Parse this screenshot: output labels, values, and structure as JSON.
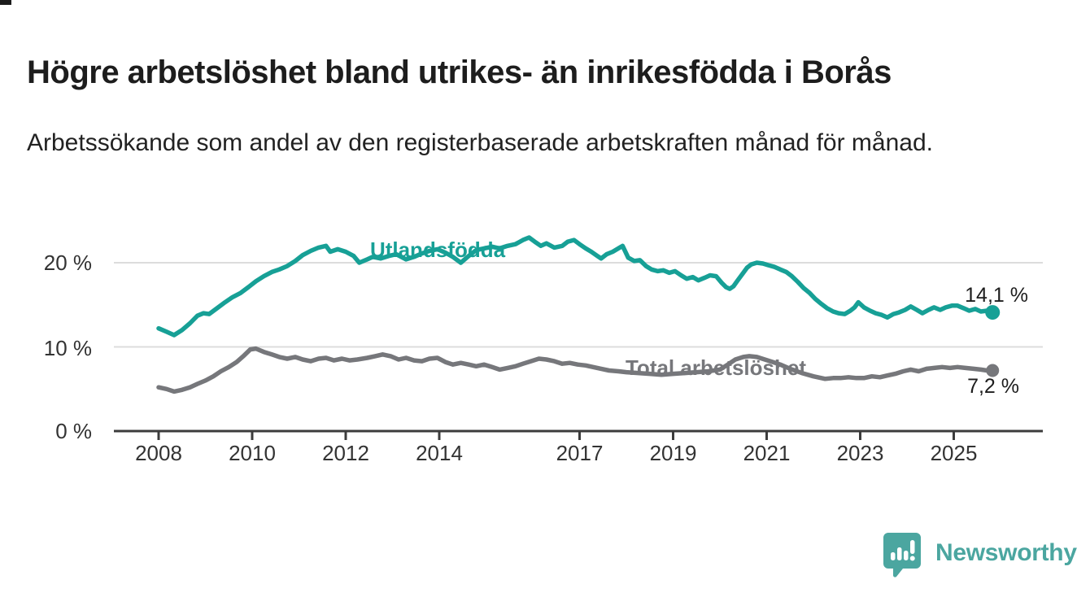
{
  "header": {
    "title": "Högre arbetslöshet bland utrikes- än inrikesfödda i Borås",
    "subtitle": "Arbetssökande som andel av den registerbaserade arbetskraften månad för månad."
  },
  "colors": {
    "accent_teal": "#17a096",
    "line_gray": "#76777b",
    "grid": "#dcdcdc",
    "axis": "#3c3c3c",
    "text_dark": "#1d1d1d",
    "logo_teal": "#4ba6a0"
  },
  "chart_data": {
    "type": "line",
    "title": "Högre arbetslöshet bland utrikes- än inrikesfödda i Borås",
    "subtitle": "Arbetssökande som andel av den registerbaserade arbetskraften månad för månad.",
    "xlabel": "",
    "ylabel": "",
    "grid": "horizontal",
    "legend_position": "inline-labels",
    "x_range": [
      2008,
      2025.83
    ],
    "ylim": [
      0,
      24
    ],
    "x_ticks": [
      2008,
      2010,
      2012,
      2014,
      2017,
      2019,
      2021,
      2023,
      2025
    ],
    "y_ticks": [
      {
        "value": 0,
        "label": "0 %"
      },
      {
        "value": 10,
        "label": "10 %"
      },
      {
        "value": 20,
        "label": "20 %"
      }
    ],
    "series": [
      {
        "name": "Utlandsfödda",
        "color": "#17a096",
        "end_label": "14,1 %",
        "end_value": 14.1,
        "points": [
          [
            2008.0,
            12.2
          ],
          [
            2008.17,
            11.8
          ],
          [
            2008.33,
            11.4
          ],
          [
            2008.5,
            12.0
          ],
          [
            2008.67,
            12.8
          ],
          [
            2008.83,
            13.7
          ],
          [
            2008.96,
            14.0
          ],
          [
            2009.08,
            13.9
          ],
          [
            2009.25,
            14.6
          ],
          [
            2009.42,
            15.3
          ],
          [
            2009.58,
            15.9
          ],
          [
            2009.75,
            16.4
          ],
          [
            2009.92,
            17.1
          ],
          [
            2010.08,
            17.8
          ],
          [
            2010.25,
            18.4
          ],
          [
            2010.42,
            18.9
          ],
          [
            2010.58,
            19.2
          ],
          [
            2010.75,
            19.6
          ],
          [
            2010.92,
            20.2
          ],
          [
            2011.08,
            20.9
          ],
          [
            2011.25,
            21.4
          ],
          [
            2011.42,
            21.8
          ],
          [
            2011.58,
            22.0
          ],
          [
            2011.67,
            21.3
          ],
          [
            2011.83,
            21.6
          ],
          [
            2012.0,
            21.3
          ],
          [
            2012.17,
            20.8
          ],
          [
            2012.29,
            20.0
          ],
          [
            2012.46,
            20.4
          ],
          [
            2012.58,
            20.7
          ],
          [
            2012.75,
            20.5
          ],
          [
            2012.92,
            20.8
          ],
          [
            2013.08,
            21.0
          ],
          [
            2013.29,
            20.4
          ],
          [
            2013.46,
            20.7
          ],
          [
            2013.63,
            21.1
          ],
          [
            2013.79,
            21.4
          ],
          [
            2013.96,
            21.6
          ],
          [
            2014.13,
            21.2
          ],
          [
            2014.29,
            20.7
          ],
          [
            2014.46,
            20.0
          ],
          [
            2014.63,
            20.8
          ],
          [
            2014.79,
            21.5
          ],
          [
            2014.96,
            21.7
          ],
          [
            2015.13,
            21.9
          ],
          [
            2015.29,
            21.7
          ],
          [
            2015.46,
            22.0
          ],
          [
            2015.63,
            22.2
          ],
          [
            2015.79,
            22.7
          ],
          [
            2015.92,
            23.0
          ],
          [
            2016.04,
            22.5
          ],
          [
            2016.17,
            22.0
          ],
          [
            2016.29,
            22.3
          ],
          [
            2016.46,
            21.8
          ],
          [
            2016.63,
            22.0
          ],
          [
            2016.75,
            22.5
          ],
          [
            2016.88,
            22.7
          ],
          [
            2017.0,
            22.2
          ],
          [
            2017.13,
            21.7
          ],
          [
            2017.25,
            21.3
          ],
          [
            2017.38,
            20.8
          ],
          [
            2017.46,
            20.5
          ],
          [
            2017.58,
            21.0
          ],
          [
            2017.71,
            21.3
          ],
          [
            2017.83,
            21.7
          ],
          [
            2017.92,
            22.0
          ],
          [
            2018.04,
            20.6
          ],
          [
            2018.17,
            20.2
          ],
          [
            2018.29,
            20.3
          ],
          [
            2018.42,
            19.6
          ],
          [
            2018.54,
            19.2
          ],
          [
            2018.67,
            19.0
          ],
          [
            2018.79,
            19.1
          ],
          [
            2018.92,
            18.8
          ],
          [
            2019.04,
            19.0
          ],
          [
            2019.17,
            18.5
          ],
          [
            2019.29,
            18.1
          ],
          [
            2019.42,
            18.3
          ],
          [
            2019.54,
            17.9
          ],
          [
            2019.67,
            18.2
          ],
          [
            2019.79,
            18.5
          ],
          [
            2019.92,
            18.4
          ],
          [
            2020.04,
            17.6
          ],
          [
            2020.13,
            17.1
          ],
          [
            2020.21,
            16.9
          ],
          [
            2020.29,
            17.2
          ],
          [
            2020.38,
            17.9
          ],
          [
            2020.5,
            18.8
          ],
          [
            2020.58,
            19.4
          ],
          [
            2020.67,
            19.8
          ],
          [
            2020.79,
            20.0
          ],
          [
            2020.92,
            19.9
          ],
          [
            2021.04,
            19.7
          ],
          [
            2021.17,
            19.5
          ],
          [
            2021.29,
            19.2
          ],
          [
            2021.42,
            18.9
          ],
          [
            2021.54,
            18.4
          ],
          [
            2021.67,
            17.7
          ],
          [
            2021.79,
            17.0
          ],
          [
            2021.92,
            16.4
          ],
          [
            2022.04,
            15.7
          ],
          [
            2022.17,
            15.1
          ],
          [
            2022.29,
            14.6
          ],
          [
            2022.42,
            14.2
          ],
          [
            2022.54,
            14.0
          ],
          [
            2022.67,
            13.9
          ],
          [
            2022.79,
            14.3
          ],
          [
            2022.88,
            14.7
          ],
          [
            2022.96,
            15.3
          ],
          [
            2023.08,
            14.7
          ],
          [
            2023.21,
            14.3
          ],
          [
            2023.33,
            14.0
          ],
          [
            2023.46,
            13.8
          ],
          [
            2023.58,
            13.5
          ],
          [
            2023.71,
            13.9
          ],
          [
            2023.83,
            14.1
          ],
          [
            2023.96,
            14.4
          ],
          [
            2024.08,
            14.8
          ],
          [
            2024.21,
            14.4
          ],
          [
            2024.33,
            14.0
          ],
          [
            2024.46,
            14.4
          ],
          [
            2024.58,
            14.7
          ],
          [
            2024.71,
            14.4
          ],
          [
            2024.83,
            14.7
          ],
          [
            2024.96,
            14.9
          ],
          [
            2025.08,
            14.9
          ],
          [
            2025.21,
            14.6
          ],
          [
            2025.33,
            14.3
          ],
          [
            2025.46,
            14.5
          ],
          [
            2025.58,
            14.2
          ],
          [
            2025.71,
            14.3
          ],
          [
            2025.83,
            14.1
          ]
        ]
      },
      {
        "name": "Total arbetslöshet",
        "color": "#76777b",
        "end_label": "7,2 %",
        "end_value": 7.2,
        "points": [
          [
            2008.0,
            5.2
          ],
          [
            2008.17,
            5.0
          ],
          [
            2008.33,
            4.7
          ],
          [
            2008.5,
            4.9
          ],
          [
            2008.67,
            5.2
          ],
          [
            2008.83,
            5.6
          ],
          [
            2009.0,
            6.0
          ],
          [
            2009.17,
            6.5
          ],
          [
            2009.33,
            7.1
          ],
          [
            2009.5,
            7.6
          ],
          [
            2009.67,
            8.2
          ],
          [
            2009.83,
            9.0
          ],
          [
            2009.96,
            9.7
          ],
          [
            2010.08,
            9.8
          ],
          [
            2010.25,
            9.4
          ],
          [
            2010.42,
            9.1
          ],
          [
            2010.58,
            8.8
          ],
          [
            2010.75,
            8.6
          ],
          [
            2010.92,
            8.8
          ],
          [
            2011.08,
            8.5
          ],
          [
            2011.25,
            8.3
          ],
          [
            2011.42,
            8.6
          ],
          [
            2011.58,
            8.7
          ],
          [
            2011.75,
            8.4
          ],
          [
            2011.92,
            8.6
          ],
          [
            2012.08,
            8.4
          ],
          [
            2012.25,
            8.5
          ],
          [
            2012.46,
            8.7
          ],
          [
            2012.63,
            8.9
          ],
          [
            2012.79,
            9.1
          ],
          [
            2012.96,
            8.9
          ],
          [
            2013.13,
            8.5
          ],
          [
            2013.29,
            8.7
          ],
          [
            2013.46,
            8.4
          ],
          [
            2013.63,
            8.3
          ],
          [
            2013.79,
            8.6
          ],
          [
            2013.96,
            8.7
          ],
          [
            2014.13,
            8.2
          ],
          [
            2014.29,
            7.9
          ],
          [
            2014.46,
            8.1
          ],
          [
            2014.63,
            7.9
          ],
          [
            2014.79,
            7.7
          ],
          [
            2014.96,
            7.9
          ],
          [
            2015.13,
            7.6
          ],
          [
            2015.29,
            7.3
          ],
          [
            2015.46,
            7.5
          ],
          [
            2015.63,
            7.7
          ],
          [
            2015.79,
            8.0
          ],
          [
            2015.96,
            8.3
          ],
          [
            2016.13,
            8.6
          ],
          [
            2016.29,
            8.5
          ],
          [
            2016.46,
            8.3
          ],
          [
            2016.63,
            8.0
          ],
          [
            2016.79,
            8.1
          ],
          [
            2016.96,
            7.9
          ],
          [
            2017.13,
            7.8
          ],
          [
            2017.29,
            7.6
          ],
          [
            2017.46,
            7.4
          ],
          [
            2017.63,
            7.2
          ],
          [
            2017.83,
            7.1
          ],
          [
            2018.0,
            7.0
          ],
          [
            2018.25,
            6.9
          ],
          [
            2018.5,
            6.8
          ],
          [
            2018.75,
            6.7
          ],
          [
            2019.0,
            6.8
          ],
          [
            2019.25,
            6.9
          ],
          [
            2019.5,
            7.0
          ],
          [
            2019.75,
            7.1
          ],
          [
            2020.0,
            7.3
          ],
          [
            2020.17,
            7.9
          ],
          [
            2020.33,
            8.5
          ],
          [
            2020.5,
            8.8
          ],
          [
            2020.63,
            8.9
          ],
          [
            2020.79,
            8.8
          ],
          [
            2020.96,
            8.5
          ],
          [
            2021.13,
            8.2
          ],
          [
            2021.29,
            7.9
          ],
          [
            2021.5,
            7.4
          ],
          [
            2021.75,
            6.9
          ],
          [
            2022.0,
            6.5
          ],
          [
            2022.25,
            6.2
          ],
          [
            2022.42,
            6.3
          ],
          [
            2022.58,
            6.3
          ],
          [
            2022.75,
            6.4
          ],
          [
            2022.92,
            6.3
          ],
          [
            2023.08,
            6.3
          ],
          [
            2023.25,
            6.5
          ],
          [
            2023.42,
            6.4
          ],
          [
            2023.58,
            6.6
          ],
          [
            2023.75,
            6.8
          ],
          [
            2023.92,
            7.1
          ],
          [
            2024.08,
            7.3
          ],
          [
            2024.25,
            7.1
          ],
          [
            2024.42,
            7.4
          ],
          [
            2024.58,
            7.5
          ],
          [
            2024.75,
            7.6
          ],
          [
            2024.92,
            7.5
          ],
          [
            2025.08,
            7.6
          ],
          [
            2025.25,
            7.5
          ],
          [
            2025.42,
            7.4
          ],
          [
            2025.58,
            7.3
          ],
          [
            2025.71,
            7.2
          ],
          [
            2025.83,
            7.2
          ]
        ]
      }
    ]
  },
  "branding": {
    "logo_text": "Newsworthy"
  }
}
